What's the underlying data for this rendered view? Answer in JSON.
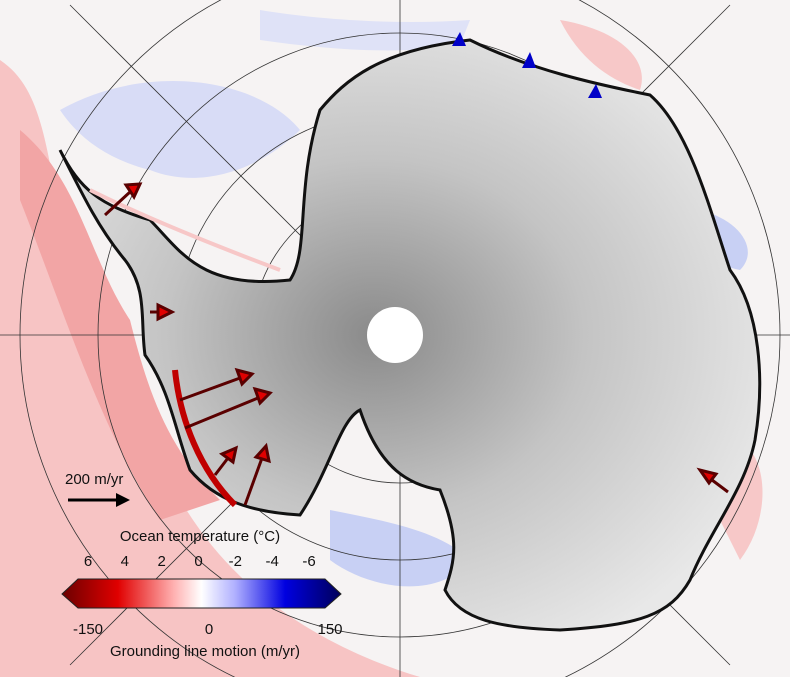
{
  "scale_arrow": {
    "label": "200 m/yr"
  },
  "temperature_legend": {
    "title": "Ocean temperature (°C)",
    "ticks": [
      6,
      4,
      2,
      0,
      -2,
      -4,
      -6
    ]
  },
  "motion_legend": {
    "title": "Grounding line motion (m/yr)",
    "ticks": [
      -150,
      0,
      150
    ]
  }
}
